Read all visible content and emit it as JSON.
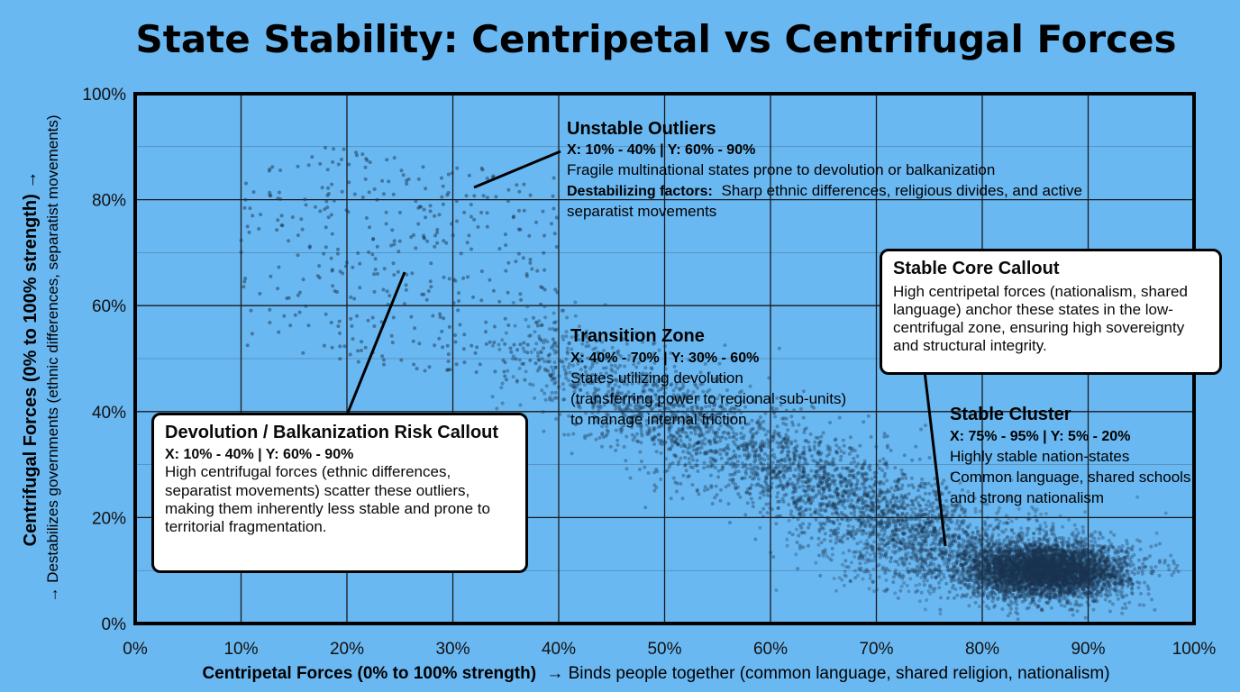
{
  "chart_data": {
    "type": "scatter",
    "title": "State Stability: Centripetal vs Centrifugal Forces",
    "xlabel_bold": "Centripetal Forces (0% to 100% strength)",
    "xlabel_rest": "→ Binds people together (common language, shared religion, nationalism)",
    "ylabel_bold": "Centrifugal Forces (0% to 100% strength) →",
    "ylabel_rest": "→ Destabilizes governments (ethnic differences, separatist movements)",
    "xlim": [
      0,
      100
    ],
    "ylim": [
      0,
      100
    ],
    "x_ticks": [
      "0%",
      "10%",
      "20%",
      "30%",
      "40%",
      "50%",
      "60%",
      "70%",
      "80%",
      "90%",
      "100%"
    ],
    "y_ticks": [
      "0%",
      "20%",
      "40%",
      "60%",
      "80%",
      "100%"
    ],
    "grid": true,
    "point_color": "#1a3550",
    "clusters": [
      {
        "name": "Unstable Outliers",
        "x_range": [
          10,
          40
        ],
        "y_range": [
          60,
          90
        ],
        "approx_points": 500
      },
      {
        "name": "Transition Zone",
        "x_range": [
          40,
          70
        ],
        "y_range": [
          30,
          60
        ],
        "approx_points": 2500
      },
      {
        "name": "Stable Cluster",
        "x_range": [
          75,
          95
        ],
        "y_range": [
          5,
          20
        ],
        "approx_points": 5000
      }
    ],
    "annotations": {
      "unstable": {
        "title": "Unstable Outliers",
        "range": "X: 10% - 40% | Y: 60% - 90%",
        "desc": "Fragile multinational states prone to devolution or balkanization",
        "factors_label": "Destabilizing factors:",
        "factors_text": "Sharp ethnic differences, religious divides, and active",
        "factors_text2": "separatist movements"
      },
      "transition": {
        "title": "Transition Zone",
        "range": "X: 40% - 70% | Y: 30% - 60%",
        "line1": "States utilizing devolution",
        "line2": "(transferring power to regional sub-units)",
        "line3": "to manage internal friction"
      },
      "stable": {
        "title": "Stable Cluster",
        "range": "X: 75% - 95% | Y: 5% - 20%",
        "line1": "Highly stable nation-states",
        "line2": "Common language, shared schools,",
        "line3": "and strong nationalism"
      }
    },
    "callouts": {
      "devolution": {
        "title": "Devolution / Balkanization Risk Callout",
        "range": "X: 10% - 40% | Y: 60% - 90%",
        "text": "High centrifugal forces (ethnic differences, separatist movements) scatter these outliers, making them inherently less stable and prone to territorial fragmentation."
      },
      "core": {
        "title": "Stable Core Callout",
        "text": "High centripetal forces (nationalism, shared language) anchor these states in the low-centrifugal zone, ensuring high sovereignty and structural integrity."
      }
    }
  }
}
